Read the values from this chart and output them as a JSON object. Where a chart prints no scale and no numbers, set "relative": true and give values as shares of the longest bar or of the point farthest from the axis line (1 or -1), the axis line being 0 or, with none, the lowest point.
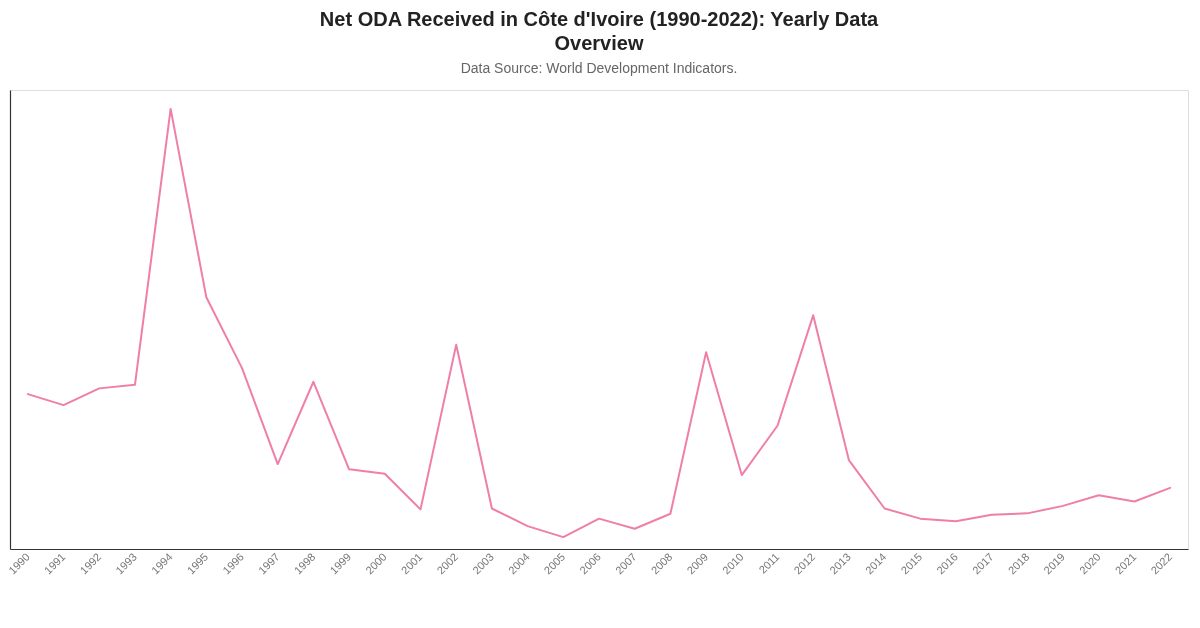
{
  "chart_data": {
    "type": "line",
    "title": "Net ODA Received in Côte d'Ivoire (1990-2022): Yearly Data Overview",
    "subtitle": "Data Source: World Development Indicators.",
    "categories": [
      "1990",
      "1991",
      "1992",
      "1993",
      "1994",
      "1995",
      "1996",
      "1997",
      "1998",
      "1999",
      "2000",
      "2001",
      "2002",
      "2003",
      "2004",
      "2005",
      "2006",
      "2007",
      "2008",
      "2009",
      "2010",
      "2011",
      "2012",
      "2013",
      "2014",
      "2015",
      "2016",
      "2017",
      "2018",
      "2019",
      "2020",
      "2021",
      "2022"
    ],
    "series": [
      {
        "color": "#ef7fa9",
        "values": [
          0.352,
          0.327,
          0.365,
          0.373,
          1.0,
          0.572,
          0.411,
          0.193,
          0.38,
          0.181,
          0.171,
          0.09,
          0.464,
          0.092,
          0.052,
          0.027,
          0.069,
          0.046,
          0.08,
          0.447,
          0.168,
          0.28,
          0.531,
          0.202,
          0.092,
          0.069,
          0.063,
          0.078,
          0.081,
          0.098,
          0.122,
          0.108,
          0.139
        ]
      }
    ],
    "relative": true,
    "tick_labels": "x"
  }
}
